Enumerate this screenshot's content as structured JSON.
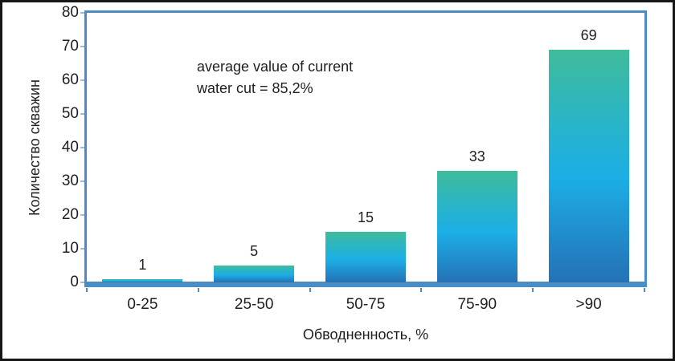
{
  "chart_data": {
    "type": "bar",
    "categories": [
      "0-25",
      "25-50",
      "50-75",
      "75-90",
      ">90"
    ],
    "values": [
      1,
      5,
      15,
      33,
      69
    ],
    "title": "",
    "xlabel": "Обводненность, %",
    "ylabel": "Количество скважин",
    "ylim": [
      0,
      80
    ],
    "yticks": [
      0,
      10,
      20,
      30,
      40,
      50,
      60,
      70,
      80
    ],
    "grid": false,
    "legend": null,
    "annotation_lines": [
      "average value of current",
      "water cut = 85,2%"
    ],
    "colors": {
      "axis_border": "#4a8cc4",
      "outer_frame": "#161616",
      "text": "#1f1f1f",
      "bar_gradient": [
        "#3fbc9b",
        "#27b3cd",
        "#1caee6",
        "#2471b6"
      ],
      "bar_gradient_stops": [
        0,
        35,
        55,
        100
      ]
    }
  }
}
